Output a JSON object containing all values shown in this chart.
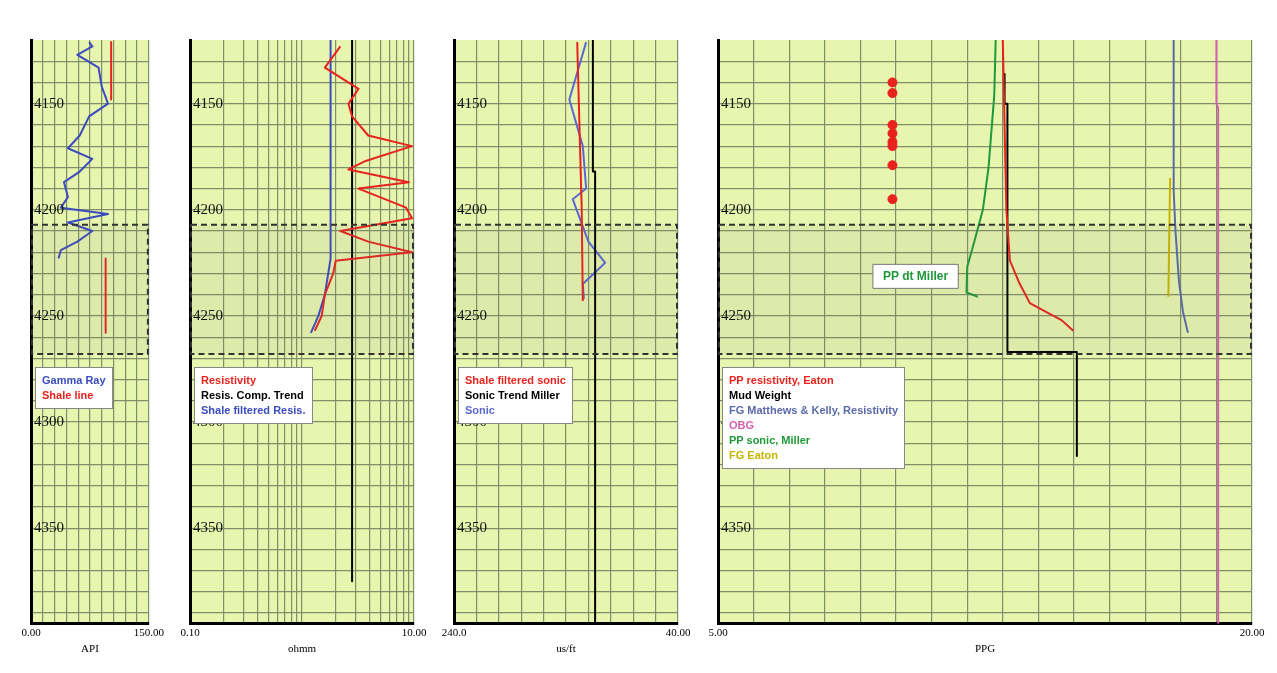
{
  "chart_data": [
    {
      "type": "line",
      "xlabel": "API",
      "xlim": [
        0,
        150
      ],
      "xticks": [
        {
          "value": 0,
          "label": "0.00"
        },
        {
          "value": 15,
          "label": null
        },
        {
          "value": 30,
          "label": null
        },
        {
          "value": 45,
          "label": null
        },
        {
          "value": 60,
          "label": null
        },
        {
          "value": 75,
          "label": null
        },
        {
          "value": 90,
          "label": null
        },
        {
          "value": 105,
          "label": null
        },
        {
          "value": 120,
          "label": null
        },
        {
          "value": 135,
          "label": null
        },
        {
          "value": 150,
          "label": "150.00"
        }
      ],
      "ylim": [
        4395,
        4120
      ],
      "yticks": [
        {
          "value": 4130,
          "label": null
        },
        {
          "value": 4140,
          "label": null
        },
        4150,
        {
          "value": 4160,
          "label": null
        },
        {
          "value": 4170,
          "label": null
        },
        {
          "value": 4180,
          "label": null
        },
        {
          "value": 4190,
          "label": null
        },
        4200,
        {
          "value": 4210,
          "label": null
        },
        {
          "value": 4220,
          "label": null
        },
        {
          "value": 4230,
          "label": null
        },
        {
          "value": 4240,
          "label": null
        },
        4250,
        {
          "value": 4260,
          "label": null
        },
        {
          "value": 4270,
          "label": null
        },
        {
          "value": 4280,
          "label": null
        },
        {
          "value": 4290,
          "label": null
        },
        4300,
        {
          "value": 4310,
          "label": null
        },
        {
          "value": 4320,
          "label": null
        },
        {
          "value": 4330,
          "label": null
        },
        {
          "value": 4340,
          "label": null
        },
        4350,
        {
          "value": 4360,
          "label": null
        },
        {
          "value": 4370,
          "label": null
        },
        {
          "value": 4380,
          "label": null
        },
        {
          "value": 4390,
          "label": null
        }
      ],
      "grid": true,
      "legend": "center",
      "marker": "none",
      "line_style": "solid",
      "bands": [
        {
          "axis": "y",
          "from": 4207,
          "to": 4268
        }
      ],
      "series": [
        {
          "name": "Gamma Ray",
          "color": "#3b4bbf",
          "type": "line",
          "x": [
            74,
            78,
            59,
            86,
            90,
            98,
            74,
            62,
            47,
            78,
            62,
            42,
            47,
            38,
            98,
            47,
            78,
            59,
            38,
            35
          ],
          "values": [
            4121,
            4123,
            4127,
            4133,
            4142,
            4150,
            4156,
            4165,
            4171,
            4176,
            4182,
            4187,
            4194,
            4199,
            4202,
            4206,
            4210,
            4215,
            4219,
            4223
          ]
        },
        {
          "name": "Shale line",
          "color": "#e8231e",
          "type": "line",
          "x": [
            102,
            102,
            null,
            95,
            95
          ],
          "values": [
            4121,
            4148,
            null,
            4223,
            4258
          ]
        }
      ]
    },
    {
      "type": "line",
      "xlabel": "ohmm",
      "log": "x",
      "xlim": [
        0.1,
        10
      ],
      "xticks": [
        {
          "value": 0.1,
          "label": "0.10"
        },
        {
          "value": 0.2,
          "label": null
        },
        {
          "value": 0.3,
          "label": null
        },
        {
          "value": 0.4,
          "label": null
        },
        {
          "value": 0.5,
          "label": null
        },
        {
          "value": 0.6,
          "label": null
        },
        {
          "value": 0.7,
          "label": null
        },
        {
          "value": 0.8,
          "label": null
        },
        {
          "value": 0.9,
          "label": null
        },
        {
          "value": 1,
          "label": null
        },
        {
          "value": 2,
          "label": null
        },
        {
          "value": 3,
          "label": null
        },
        {
          "value": 4,
          "label": null
        },
        {
          "value": 5,
          "label": null
        },
        {
          "value": 6,
          "label": null
        },
        {
          "value": 7,
          "label": null
        },
        {
          "value": 8,
          "label": null
        },
        {
          "value": 9,
          "label": null
        },
        {
          "value": 10,
          "label": "10.00"
        }
      ],
      "ylim": [
        4395,
        4120
      ],
      "yticks": [
        {
          "value": 4130,
          "label": null
        },
        {
          "value": 4140,
          "label": null
        },
        4150,
        {
          "value": 4160,
          "label": null
        },
        {
          "value": 4170,
          "label": null
        },
        {
          "value": 4180,
          "label": null
        },
        {
          "value": 4190,
          "label": null
        },
        4200,
        {
          "value": 4210,
          "label": null
        },
        {
          "value": 4220,
          "label": null
        },
        {
          "value": 4230,
          "label": null
        },
        {
          "value": 4240,
          "label": null
        },
        4250,
        {
          "value": 4260,
          "label": null
        },
        {
          "value": 4270,
          "label": null
        },
        {
          "value": 4280,
          "label": null
        },
        {
          "value": 4290,
          "label": null
        },
        4300,
        {
          "value": 4310,
          "label": null
        },
        {
          "value": 4320,
          "label": null
        },
        {
          "value": 4330,
          "label": null
        },
        {
          "value": 4340,
          "label": null
        },
        4350,
        {
          "value": 4360,
          "label": null
        },
        {
          "value": 4370,
          "label": null
        },
        {
          "value": 4380,
          "label": null
        },
        {
          "value": 4390,
          "label": null
        }
      ],
      "grid": true,
      "legend": "center",
      "marker": "none",
      "line_style": "solid",
      "bands": [
        {
          "axis": "y",
          "from": 4207,
          "to": 4268
        }
      ],
      "series": [
        {
          "name": "Resistivity",
          "color": "#e8231e",
          "type": "line",
          "x": [
            2.2,
            1.6,
            3.2,
            2.6,
            2.8,
            3.9,
            9.6,
            3.7,
            2.6,
            9.0,
            3.2,
            8.5,
            9.6,
            2.2,
            3.9,
            9.6,
            2.0,
            1.9,
            1.6,
            1.5,
            1.3
          ],
          "values": [
            4123,
            4133,
            4143,
            4150,
            4156,
            4165,
            4170,
            4177,
            4181,
            4187,
            4190,
            4199,
            4204,
            4210,
            4215,
            4220,
            4224,
            4230,
            4240,
            4250,
            4257
          ]
        },
        {
          "name": "Resis. Comp. Trend",
          "color": "#000000",
          "type": "line",
          "x": [
            2.8,
            2.8
          ],
          "values": [
            4120,
            4375
          ]
        },
        {
          "name": "Shale filtered Resis.",
          "color": "#3b4bbf",
          "type": "line",
          "x": [
            1.8,
            1.8,
            1.6,
            1.4,
            1.2
          ],
          "values": [
            4120,
            4223,
            4240,
            4250,
            4258
          ]
        }
      ]
    },
    {
      "type": "line",
      "xlabel": "us/ft",
      "xlim": [
        240,
        40
      ],
      "xticks": [
        {
          "value": 240,
          "label": "240.0"
        },
        {
          "value": 220,
          "label": null
        },
        {
          "value": 200,
          "label": null
        },
        {
          "value": 180,
          "label": null
        },
        {
          "value": 160,
          "label": null
        },
        {
          "value": 140,
          "label": null
        },
        {
          "value": 120,
          "label": null
        },
        {
          "value": 100,
          "label": null
        },
        {
          "value": 80,
          "label": null
        },
        {
          "value": 60,
          "label": null
        },
        {
          "value": 40,
          "label": "40.00"
        }
      ],
      "ylim": [
        4395,
        4120
      ],
      "yticks": [
        {
          "value": 4130,
          "label": null
        },
        {
          "value": 4140,
          "label": null
        },
        4150,
        {
          "value": 4160,
          "label": null
        },
        {
          "value": 4170,
          "label": null
        },
        {
          "value": 4180,
          "label": null
        },
        {
          "value": 4190,
          "label": null
        },
        4200,
        {
          "value": 4210,
          "label": null
        },
        {
          "value": 4220,
          "label": null
        },
        {
          "value": 4230,
          "label": null
        },
        {
          "value": 4240,
          "label": null
        },
        4250,
        {
          "value": 4260,
          "label": null
        },
        {
          "value": 4270,
          "label": null
        },
        {
          "value": 4280,
          "label": null
        },
        {
          "value": 4290,
          "label": null
        },
        4300,
        {
          "value": 4310,
          "label": null
        },
        {
          "value": 4320,
          "label": null
        },
        {
          "value": 4330,
          "label": null
        },
        {
          "value": 4340,
          "label": null
        },
        4350,
        {
          "value": 4360,
          "label": null
        },
        {
          "value": 4370,
          "label": null
        },
        {
          "value": 4380,
          "label": null
        },
        {
          "value": 4390,
          "label": null
        }
      ],
      "grid": true,
      "legend": "center",
      "marker": "none",
      "line_style": "solid",
      "bands": [
        {
          "axis": "y",
          "from": 4207,
          "to": 4268
        }
      ],
      "series": [
        {
          "name": "Shale filtered sonic",
          "color": "#e8231e",
          "type": "line",
          "x": [
            130,
            128,
            126,
            125
          ],
          "values": [
            4121,
            4160,
            4199,
            4243
          ]
        },
        {
          "name": "Sonic Trend Miller",
          "color": "#000000",
          "type": "line",
          "x": [
            116,
            116,
            114,
            114
          ],
          "values": [
            4120,
            4182,
            4182,
            4395
          ]
        },
        {
          "name": "Sonic",
          "color": "#5a6ad0",
          "type": "line",
          "x": [
            122,
            137,
            125,
            122,
            134,
            120,
            105,
            125,
            124
          ],
          "values": [
            4121,
            4148,
            4170,
            4190,
            4195,
            4215,
            4225,
            4235,
            4242
          ]
        }
      ]
    },
    {
      "type": "line",
      "xlabel": "PPG",
      "xlim": [
        5,
        20
      ],
      "xticks": [
        {
          "value": 5,
          "label": "5.00"
        },
        {
          "value": 6,
          "label": null
        },
        {
          "value": 7,
          "label": null
        },
        {
          "value": 8,
          "label": null
        },
        {
          "value": 9,
          "label": null
        },
        {
          "value": 10,
          "label": null
        },
        {
          "value": 11,
          "label": null
        },
        {
          "value": 12,
          "label": null
        },
        {
          "value": 13,
          "label": null
        },
        {
          "value": 14,
          "label": null
        },
        {
          "value": 15,
          "label": null
        },
        {
          "value": 16,
          "label": null
        },
        {
          "value": 17,
          "label": null
        },
        {
          "value": 18,
          "label": null
        },
        {
          "value": 19,
          "label": null
        },
        {
          "value": 20,
          "label": "20.00"
        }
      ],
      "ylim": [
        4395,
        4120
      ],
      "yticks": [
        {
          "value": 4130,
          "label": null
        },
        {
          "value": 4140,
          "label": null
        },
        4150,
        {
          "value": 4160,
          "label": null
        },
        {
          "value": 4170,
          "label": null
        },
        {
          "value": 4180,
          "label": null
        },
        {
          "value": 4190,
          "label": null
        },
        4200,
        {
          "value": 4210,
          "label": null
        },
        {
          "value": 4220,
          "label": null
        },
        {
          "value": 4230,
          "label": null
        },
        {
          "value": 4240,
          "label": null
        },
        4250,
        {
          "value": 4260,
          "label": null
        },
        {
          "value": 4270,
          "label": null
        },
        {
          "value": 4280,
          "label": null
        },
        {
          "value": 4290,
          "label": null
        },
        4300,
        {
          "value": 4310,
          "label": null
        },
        {
          "value": 4320,
          "label": null
        },
        {
          "value": 4330,
          "label": null
        },
        {
          "value": 4340,
          "label": null
        },
        4350,
        {
          "value": 4360,
          "label": null
        },
        {
          "value": 4370,
          "label": null
        },
        {
          "value": 4380,
          "label": null
        },
        {
          "value": 4390,
          "label": null
        }
      ],
      "grid": true,
      "legend": "center",
      "marker": "none",
      "line_style": "solid",
      "bands": [
        {
          "axis": "y",
          "from": 4207,
          "to": 4268
        }
      ],
      "annotations": [
        "PP dt Miller"
      ],
      "series": [
        {
          "name": "PP resistivity, Eaton",
          "color": "#e8231e",
          "type": "line",
          "x": [
            13.0,
            13.1,
            13.2,
            13.45,
            13.76,
            14.2,
            14.65,
            14.98
          ],
          "values": [
            4120,
            4200,
            4224,
            4234,
            4244,
            4248,
            4252,
            4257
          ]
        },
        {
          "name": "Mud Weight",
          "color": "#000000",
          "type": "line",
          "x": [
            13.05,
            13.05,
            13.13,
            13.13,
            15.08,
            15.08
          ],
          "values": [
            4136,
            4150,
            4150,
            4267,
            4267,
            4316
          ]
        },
        {
          "name": "FG Matthews & Kelly, Resistivity",
          "color": "#5a6aa8",
          "type": "line",
          "x": [
            17.8,
            17.8,
            17.85,
            17.95,
            18.06,
            18.2
          ],
          "values": [
            4120,
            4191,
            4210,
            4234,
            4248,
            4258
          ]
        },
        {
          "name": "OBG",
          "color": "#d45fae",
          "type": "line",
          "x": [
            19.0,
            19.0,
            19.05,
            19.05
          ],
          "values": [
            4120,
            4150,
            4152,
            4395
          ]
        },
        {
          "name": "PP sonic, Miller",
          "color": "#1f9a3a",
          "type": "line",
          "x": [
            12.8,
            12.76,
            12.6,
            12.44,
            12.2,
            12.0,
            11.98,
            12.3
          ],
          "values": [
            4120,
            4146,
            4180,
            4200,
            4215,
            4227,
            4239,
            4241
          ]
        },
        {
          "name": "FG Eaton",
          "color": "#c8b400",
          "type": "line",
          "x": [
            17.7,
            17.65
          ],
          "values": [
            4185,
            4241
          ]
        },
        {
          "color": "#e8231e",
          "type": "scatter",
          "marker": "circle",
          "x": [
            9.9,
            9.9,
            9.9,
            9.9,
            9.9,
            9.9,
            9.9,
            9.9
          ],
          "values": [
            4140,
            4145,
            4160,
            4164,
            4168,
            4170,
            4179,
            4195
          ]
        }
      ]
    }
  ]
}
